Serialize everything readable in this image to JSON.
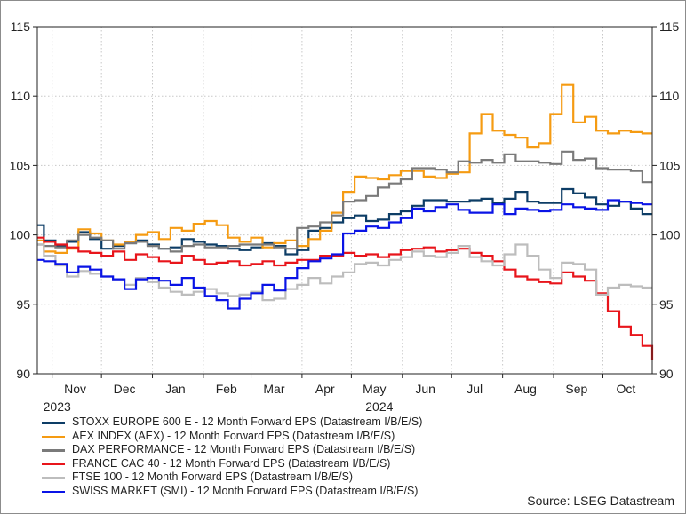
{
  "chart_data": {
    "type": "line",
    "x_start": "2023-10-23",
    "x_end": "2024-10-31",
    "xlim": [
      "2023-10-23",
      "2024-10-31"
    ],
    "ylim": [
      90,
      115
    ],
    "yticks": [
      90,
      95,
      100,
      105,
      110,
      115
    ],
    "y_axis_both_sides": true,
    "grid": true,
    "legend_position": "bottom-left",
    "month_ticks": [
      {
        "label": "Nov",
        "date": "2023-11-15"
      },
      {
        "label": "Dec",
        "date": "2023-12-15"
      },
      {
        "label": "Jan",
        "date": "2024-01-15"
      },
      {
        "label": "Feb",
        "date": "2024-02-15"
      },
      {
        "label": "Mar",
        "date": "2024-03-15"
      },
      {
        "label": "Apr",
        "date": "2024-04-15"
      },
      {
        "label": "May",
        "date": "2024-05-15"
      },
      {
        "label": "Jun",
        "date": "2024-06-15"
      },
      {
        "label": "Jul",
        "date": "2024-07-15"
      },
      {
        "label": "Aug",
        "date": "2024-08-15"
      },
      {
        "label": "Sep",
        "date": "2024-09-15"
      },
      {
        "label": "Oct",
        "date": "2024-10-15"
      }
    ],
    "grid_dates": [
      "2023-11-01",
      "2023-12-01",
      "2024-01-01",
      "2024-02-01",
      "2024-03-01",
      "2024-04-01",
      "2024-05-01",
      "2024-06-01",
      "2024-07-01",
      "2024-08-01",
      "2024-09-01",
      "2024-10-01"
    ],
    "year_labels": [
      {
        "label": "2023",
        "date": "2023-11-04"
      },
      {
        "label": "2024",
        "date": "2024-05-18"
      }
    ],
    "series": [
      {
        "name": "STOXX EUROPE 600 E - 12 Month Forward EPS (Datastream I/B/E/S)",
        "color": "#0d3d66",
        "x": [
          "2023-10-23",
          "2023-10-27",
          "2023-11-03",
          "2023-11-10",
          "2023-11-17",
          "2023-11-24",
          "2023-12-01",
          "2023-12-08",
          "2023-12-15",
          "2023-12-22",
          "2023-12-29",
          "2024-01-05",
          "2024-01-12",
          "2024-01-19",
          "2024-01-26",
          "2024-02-02",
          "2024-02-09",
          "2024-02-16",
          "2024-02-23",
          "2024-03-01",
          "2024-03-08",
          "2024-03-15",
          "2024-03-22",
          "2024-03-29",
          "2024-04-05",
          "2024-04-12",
          "2024-04-19",
          "2024-04-26",
          "2024-05-03",
          "2024-05-10",
          "2024-05-17",
          "2024-05-24",
          "2024-05-31",
          "2024-06-07",
          "2024-06-14",
          "2024-06-21",
          "2024-06-28",
          "2024-07-05",
          "2024-07-12",
          "2024-07-19",
          "2024-07-26",
          "2024-08-02",
          "2024-08-09",
          "2024-08-16",
          "2024-08-23",
          "2024-08-30",
          "2024-09-06",
          "2024-09-13",
          "2024-09-20",
          "2024-09-27",
          "2024-10-04",
          "2024-10-11",
          "2024-10-18",
          "2024-10-25",
          "2024-10-31"
        ],
        "values": [
          100.7,
          99.6,
          99.2,
          99.5,
          100.2,
          99.7,
          99.0,
          99.2,
          99.4,
          99.6,
          99.3,
          99.0,
          99.1,
          99.7,
          99.5,
          99.3,
          99.2,
          99.0,
          98.9,
          99.1,
          99.4,
          99.2,
          98.6,
          98.9,
          100.3,
          100.5,
          100.9,
          101.2,
          101.4,
          101.0,
          101.1,
          101.5,
          101.7,
          102.1,
          102.5,
          102.5,
          102.4,
          102.4,
          102.5,
          102.6,
          102.3,
          102.6,
          103.1,
          102.4,
          102.3,
          102.3,
          103.3,
          103.0,
          102.7,
          102.2,
          102.1,
          102.4,
          101.9,
          101.5,
          101.5
        ]
      },
      {
        "name": "AEX INDEX (AEX) - 12 Month Forward EPS (Datastream I/B/E/S)",
        "color": "#f59b12",
        "x": [
          "2023-10-23",
          "2023-10-27",
          "2023-11-03",
          "2023-11-10",
          "2023-11-17",
          "2023-11-24",
          "2023-12-01",
          "2023-12-08",
          "2023-12-15",
          "2023-12-22",
          "2023-12-29",
          "2024-01-05",
          "2024-01-12",
          "2024-01-19",
          "2024-01-26",
          "2024-02-02",
          "2024-02-09",
          "2024-02-16",
          "2024-02-23",
          "2024-03-01",
          "2024-03-08",
          "2024-03-15",
          "2024-03-22",
          "2024-03-29",
          "2024-04-05",
          "2024-04-12",
          "2024-04-19",
          "2024-04-26",
          "2024-05-03",
          "2024-05-10",
          "2024-05-17",
          "2024-05-24",
          "2024-05-31",
          "2024-06-07",
          "2024-06-14",
          "2024-06-21",
          "2024-06-28",
          "2024-07-05",
          "2024-07-12",
          "2024-07-19",
          "2024-07-26",
          "2024-08-02",
          "2024-08-09",
          "2024-08-16",
          "2024-08-23",
          "2024-08-30",
          "2024-09-06",
          "2024-09-13",
          "2024-09-20",
          "2024-09-27",
          "2024-10-04",
          "2024-10-11",
          "2024-10-18",
          "2024-10-25",
          "2024-10-31"
        ],
        "values": [
          99.6,
          98.8,
          98.7,
          99.0,
          100.4,
          100.1,
          99.6,
          99.3,
          99.5,
          100.0,
          100.2,
          99.7,
          100.5,
          100.3,
          100.8,
          101.0,
          100.7,
          99.8,
          99.5,
          99.8,
          99.1,
          99.4,
          99.6,
          99.2,
          99.7,
          100.3,
          101.6,
          103.1,
          104.2,
          104.1,
          104.0,
          104.3,
          104.6,
          104.6,
          104.2,
          104.1,
          104.4,
          104.5,
          107.3,
          108.7,
          107.5,
          107.2,
          107.0,
          106.3,
          106.6,
          108.7,
          110.8,
          108.1,
          108.5,
          107.5,
          107.3,
          107.5,
          107.4,
          107.3,
          107.3
        ]
      },
      {
        "name": "DAX PERFORMANCE - 12 Month Forward EPS (Datastream I/B/E/S)",
        "color": "#7a7a7a",
        "x": [
          "2023-10-23",
          "2023-10-27",
          "2023-11-03",
          "2023-11-10",
          "2023-11-17",
          "2023-11-24",
          "2023-12-01",
          "2023-12-08",
          "2023-12-15",
          "2023-12-22",
          "2023-12-29",
          "2024-01-05",
          "2024-01-12",
          "2024-01-19",
          "2024-01-26",
          "2024-02-02",
          "2024-02-09",
          "2024-02-16",
          "2024-02-23",
          "2024-03-01",
          "2024-03-08",
          "2024-03-15",
          "2024-03-22",
          "2024-03-29",
          "2024-04-05",
          "2024-04-12",
          "2024-04-19",
          "2024-04-26",
          "2024-05-03",
          "2024-05-10",
          "2024-05-17",
          "2024-05-24",
          "2024-05-31",
          "2024-06-07",
          "2024-06-14",
          "2024-06-21",
          "2024-06-28",
          "2024-07-05",
          "2024-07-12",
          "2024-07-19",
          "2024-07-26",
          "2024-08-02",
          "2024-08-09",
          "2024-08-16",
          "2024-08-23",
          "2024-08-30",
          "2024-09-06",
          "2024-09-13",
          "2024-09-20",
          "2024-09-27",
          "2024-10-04",
          "2024-10-11",
          "2024-10-18",
          "2024-10-25",
          "2024-10-31"
        ],
        "values": [
          99.3,
          99.2,
          99.1,
          99.6,
          100.0,
          99.8,
          99.6,
          99.0,
          99.4,
          99.5,
          99.2,
          99.0,
          98.8,
          99.2,
          99.3,
          99.1,
          99.1,
          99.2,
          99.3,
          99.3,
          99.3,
          99.1,
          99.0,
          100.5,
          100.6,
          100.9,
          101.4,
          102.4,
          102.5,
          102.8,
          103.4,
          103.7,
          104.0,
          104.8,
          104.8,
          104.7,
          104.5,
          105.3,
          105.2,
          105.4,
          105.2,
          105.8,
          105.3,
          105.3,
          105.2,
          105.1,
          106.0,
          105.4,
          105.5,
          104.8,
          104.7,
          104.7,
          104.6,
          103.8,
          103.8
        ]
      },
      {
        "name": "FRANCE CAC 40 - 12 Month Forward EPS (Datastream I/B/E/S)",
        "color": "#e8151b",
        "x": [
          "2023-10-23",
          "2023-10-27",
          "2023-11-03",
          "2023-11-10",
          "2023-11-17",
          "2023-11-24",
          "2023-12-01",
          "2023-12-08",
          "2023-12-15",
          "2023-12-22",
          "2023-12-29",
          "2024-01-05",
          "2024-01-12",
          "2024-01-19",
          "2024-01-26",
          "2024-02-02",
          "2024-02-09",
          "2024-02-16",
          "2024-02-23",
          "2024-03-01",
          "2024-03-08",
          "2024-03-15",
          "2024-03-22",
          "2024-03-29",
          "2024-04-05",
          "2024-04-12",
          "2024-04-19",
          "2024-04-26",
          "2024-05-03",
          "2024-05-10",
          "2024-05-17",
          "2024-05-24",
          "2024-05-31",
          "2024-06-07",
          "2024-06-14",
          "2024-06-21",
          "2024-06-28",
          "2024-07-05",
          "2024-07-12",
          "2024-07-19",
          "2024-07-26",
          "2024-08-02",
          "2024-08-09",
          "2024-08-16",
          "2024-08-23",
          "2024-08-30",
          "2024-09-06",
          "2024-09-13",
          "2024-09-20",
          "2024-09-27",
          "2024-10-04",
          "2024-10-11",
          "2024-10-18",
          "2024-10-25",
          "2024-10-31"
        ],
        "values": [
          99.8,
          99.5,
          99.3,
          99.1,
          98.8,
          98.7,
          98.5,
          98.8,
          98.2,
          98.6,
          98.4,
          98.1,
          98.0,
          98.5,
          98.2,
          97.9,
          98.0,
          98.1,
          97.8,
          97.9,
          98.1,
          97.8,
          98.0,
          98.2,
          98.2,
          98.5,
          98.5,
          98.7,
          98.5,
          98.6,
          98.4,
          98.6,
          98.9,
          99.0,
          99.1,
          98.8,
          98.9,
          99.0,
          98.7,
          98.5,
          98.1,
          97.5,
          97.0,
          96.8,
          96.6,
          96.5,
          97.3,
          97.0,
          96.7,
          95.8,
          94.5,
          93.4,
          92.8,
          92.0,
          91.0
        ]
      },
      {
        "name": "FTSE 100 - 12 Month Forward EPS (Datastream I/B/E/S)",
        "color": "#bdbdbd",
        "x": [
          "2023-10-23",
          "2023-10-27",
          "2023-11-03",
          "2023-11-10",
          "2023-11-17",
          "2023-11-24",
          "2023-12-01",
          "2023-12-08",
          "2023-12-15",
          "2023-12-22",
          "2023-12-29",
          "2024-01-05",
          "2024-01-12",
          "2024-01-19",
          "2024-01-26",
          "2024-02-02",
          "2024-02-09",
          "2024-02-16",
          "2024-02-23",
          "2024-03-01",
          "2024-03-08",
          "2024-03-15",
          "2024-03-22",
          "2024-03-29",
          "2024-04-05",
          "2024-04-12",
          "2024-04-19",
          "2024-04-26",
          "2024-05-03",
          "2024-05-10",
          "2024-05-17",
          "2024-05-24",
          "2024-05-31",
          "2024-06-07",
          "2024-06-14",
          "2024-06-21",
          "2024-06-28",
          "2024-07-05",
          "2024-07-12",
          "2024-07-19",
          "2024-07-26",
          "2024-08-02",
          "2024-08-09",
          "2024-08-16",
          "2024-08-23",
          "2024-08-30",
          "2024-09-06",
          "2024-09-13",
          "2024-09-20",
          "2024-09-27",
          "2024-10-04",
          "2024-10-11",
          "2024-10-18",
          "2024-10-25",
          "2024-10-31"
        ],
        "values": [
          99.3,
          98.5,
          97.8,
          97.0,
          97.4,
          97.2,
          97.0,
          96.8,
          96.4,
          96.9,
          96.6,
          96.2,
          95.9,
          95.7,
          95.9,
          96.1,
          95.8,
          95.6,
          95.7,
          95.9,
          95.3,
          95.4,
          96.1,
          96.4,
          96.9,
          96.5,
          97.0,
          97.3,
          97.9,
          98.0,
          97.8,
          98.2,
          98.4,
          98.8,
          98.5,
          98.4,
          98.7,
          99.2,
          98.4,
          98.1,
          97.8,
          98.6,
          99.3,
          98.5,
          97.5,
          96.9,
          98.0,
          97.9,
          97.5,
          95.7,
          96.2,
          96.4,
          96.3,
          96.2,
          96.2
        ]
      },
      {
        "name": "SWISS MARKET (SMI) - 12 Month Forward EPS (Datastream I/B/E/S)",
        "color": "#0a14e6",
        "x": [
          "2023-10-23",
          "2023-10-27",
          "2023-11-03",
          "2023-11-10",
          "2023-11-17",
          "2023-11-24",
          "2023-12-01",
          "2023-12-08",
          "2023-12-15",
          "2023-12-22",
          "2023-12-29",
          "2024-01-05",
          "2024-01-12",
          "2024-01-19",
          "2024-01-26",
          "2024-02-02",
          "2024-02-09",
          "2024-02-16",
          "2024-02-23",
          "2024-03-01",
          "2024-03-08",
          "2024-03-15",
          "2024-03-22",
          "2024-03-29",
          "2024-04-05",
          "2024-04-12",
          "2024-04-19",
          "2024-04-26",
          "2024-05-03",
          "2024-05-10",
          "2024-05-17",
          "2024-05-24",
          "2024-05-31",
          "2024-06-07",
          "2024-06-14",
          "2024-06-21",
          "2024-06-28",
          "2024-07-05",
          "2024-07-12",
          "2024-07-19",
          "2024-07-26",
          "2024-08-02",
          "2024-08-09",
          "2024-08-16",
          "2024-08-23",
          "2024-08-30",
          "2024-09-06",
          "2024-09-13",
          "2024-09-20",
          "2024-09-27",
          "2024-10-04",
          "2024-10-11",
          "2024-10-18",
          "2024-10-25",
          "2024-10-31"
        ],
        "values": [
          98.2,
          98.1,
          97.9,
          97.3,
          97.7,
          97.5,
          97.0,
          96.8,
          96.1,
          96.8,
          96.9,
          96.7,
          96.4,
          96.9,
          96.2,
          95.6,
          95.3,
          94.7,
          95.4,
          95.8,
          96.4,
          96.0,
          96.9,
          97.6,
          98.1,
          98.3,
          98.6,
          100.1,
          100.3,
          100.6,
          100.5,
          100.9,
          101.2,
          101.9,
          101.7,
          102.0,
          102.2,
          101.8,
          101.6,
          101.6,
          102.2,
          101.5,
          101.9,
          101.8,
          101.7,
          101.8,
          102.2,
          102.0,
          101.9,
          101.8,
          102.5,
          102.4,
          102.3,
          102.2,
          102.2
        ]
      }
    ]
  },
  "source": "Source: LSEG Datastream"
}
